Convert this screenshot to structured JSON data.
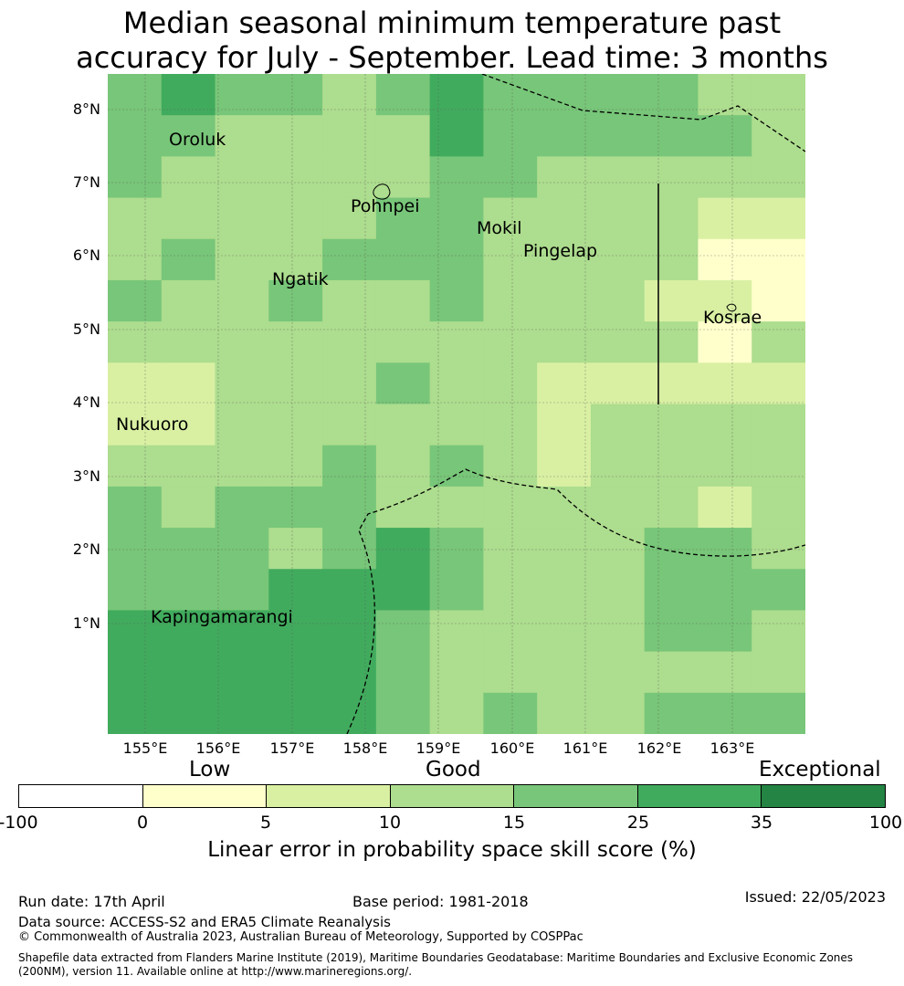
{
  "title": "Median seasonal minimum temperature past\naccuracy for July - September. Lead time: 3 months",
  "map": {
    "lat_ticks": [
      "8°N",
      "7°N",
      "6°N",
      "5°N",
      "4°N",
      "3°N",
      "2°N",
      "1°N"
    ],
    "lon_ticks": [
      "155°E",
      "156°E",
      "157°E",
      "158°E",
      "159°E",
      "160°E",
      "161°E",
      "162°E",
      "163°E"
    ],
    "islands": [
      "Oroluk",
      "Pohnpei",
      "Mokil",
      "Pingelap",
      "Ngatik",
      "Kosrae",
      "Nukuoro",
      "Kapingamarangi"
    ],
    "grid": [
      [
        4,
        5,
        4,
        4,
        3,
        4,
        5,
        4,
        4,
        4,
        4,
        3,
        3
      ],
      [
        4,
        4,
        3,
        3,
        3,
        3,
        5,
        4,
        4,
        4,
        4,
        4,
        3
      ],
      [
        4,
        3,
        3,
        3,
        3,
        3,
        4,
        4,
        3,
        3,
        3,
        3,
        3
      ],
      [
        3,
        3,
        3,
        3,
        3,
        4,
        4,
        3,
        3,
        3,
        3,
        2,
        2
      ],
      [
        3,
        4,
        3,
        3,
        4,
        4,
        4,
        3,
        3,
        3,
        3,
        1,
        1
      ],
      [
        4,
        3,
        3,
        4,
        3,
        3,
        4,
        3,
        3,
        3,
        2,
        2,
        1
      ],
      [
        3,
        3,
        3,
        3,
        3,
        3,
        3,
        3,
        3,
        3,
        3,
        1,
        3
      ],
      [
        2,
        2,
        3,
        3,
        3,
        4,
        3,
        3,
        2,
        2,
        2,
        2,
        2
      ],
      [
        2,
        2,
        3,
        3,
        3,
        3,
        3,
        3,
        2,
        3,
        3,
        3,
        3
      ],
      [
        3,
        3,
        3,
        3,
        4,
        3,
        4,
        3,
        2,
        3,
        3,
        3,
        3
      ],
      [
        4,
        3,
        4,
        4,
        4,
        3,
        3,
        3,
        3,
        3,
        3,
        2,
        3
      ],
      [
        4,
        4,
        4,
        3,
        4,
        5,
        4,
        3,
        3,
        3,
        4,
        4,
        3
      ],
      [
        4,
        4,
        4,
        5,
        5,
        5,
        4,
        3,
        3,
        3,
        4,
        4,
        4
      ],
      [
        5,
        5,
        5,
        5,
        5,
        4,
        3,
        3,
        3,
        3,
        4,
        4,
        3
      ],
      [
        5,
        5,
        5,
        5,
        5,
        4,
        3,
        3,
        3,
        3,
        3,
        3,
        3
      ],
      [
        5,
        5,
        5,
        5,
        5,
        4,
        3,
        4,
        3,
        3,
        4,
        4,
        4
      ]
    ]
  },
  "colorbar": {
    "categories": [
      "Low",
      "Good",
      "Exceptional"
    ],
    "ticks": [
      "-100",
      "0",
      "5",
      "10",
      "15",
      "25",
      "35",
      "100"
    ],
    "colors": [
      "#ffffff",
      "#ffffcc",
      "#d9f0a3",
      "#addd8e",
      "#78c679",
      "#41ab5d",
      "#238443"
    ],
    "label": "Linear error in probability space skill score (%)"
  },
  "footer": {
    "run_date": "Run date: 17th April",
    "base_period": "Base period: 1981-2018",
    "issued": "Issued: 22/05/2023",
    "data_source": "Data source: ACCESS-S2 and ERA5 Climate Reanalysis",
    "copyright": "© Commonwealth of Australia 2023, Australian Bureau of Meteorology, Supported by COSPPac",
    "shapefile": "Shapefile data extracted from Flanders Marine Institute (2019), Maritime Boundaries Geodatabase: Maritime Boundaries and Exclusive Economic Zones (200NM), version 11. Available online at http://www.marineregions.org/."
  }
}
